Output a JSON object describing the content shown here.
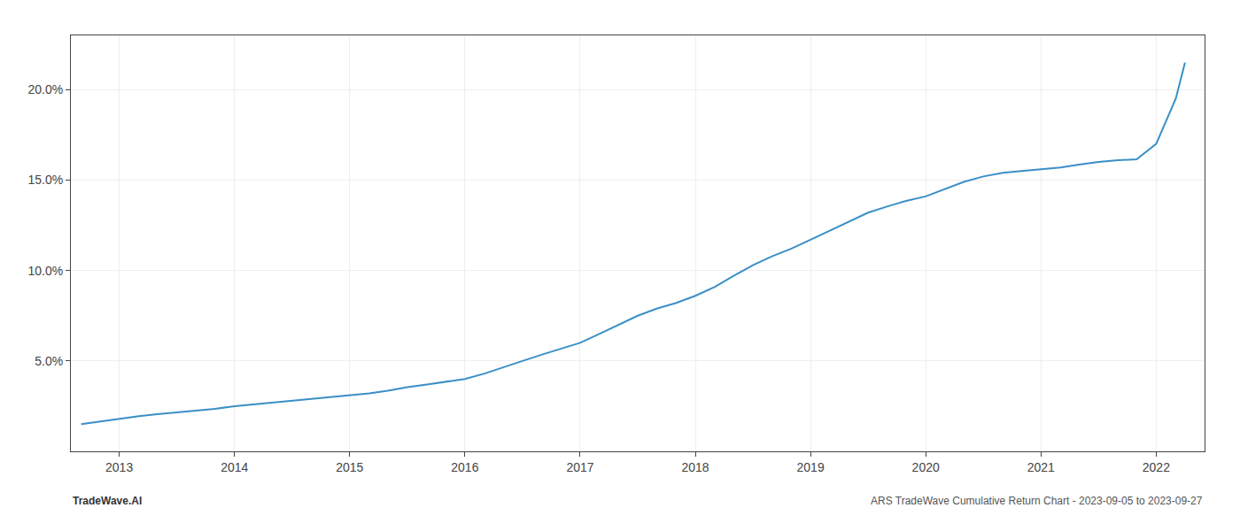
{
  "chart_data": {
    "type": "line",
    "x": [
      2012.67,
      2012.83,
      2013.0,
      2013.17,
      2013.33,
      2013.5,
      2013.67,
      2013.83,
      2014.0,
      2014.17,
      2014.33,
      2014.5,
      2014.67,
      2014.83,
      2015.0,
      2015.17,
      2015.33,
      2015.5,
      2015.67,
      2015.83,
      2016.0,
      2016.17,
      2016.33,
      2016.5,
      2016.67,
      2016.83,
      2017.0,
      2017.17,
      2017.33,
      2017.5,
      2017.67,
      2017.83,
      2018.0,
      2018.17,
      2018.33,
      2018.5,
      2018.67,
      2018.83,
      2019.0,
      2019.17,
      2019.33,
      2019.5,
      2019.67,
      2019.83,
      2020.0,
      2020.17,
      2020.33,
      2020.5,
      2020.67,
      2020.83,
      2021.0,
      2021.17,
      2021.33,
      2021.5,
      2021.67,
      2021.83,
      2022.0,
      2022.17,
      2022.25
    ],
    "values": [
      1.5,
      1.65,
      1.8,
      1.95,
      2.05,
      2.15,
      2.25,
      2.35,
      2.5,
      2.6,
      2.7,
      2.8,
      2.9,
      3.0,
      3.1,
      3.2,
      3.35,
      3.55,
      3.7,
      3.85,
      4.0,
      4.3,
      4.65,
      5.0,
      5.35,
      5.65,
      6.0,
      6.5,
      7.0,
      7.5,
      7.9,
      8.2,
      8.6,
      9.1,
      9.7,
      10.3,
      10.8,
      11.2,
      11.7,
      12.2,
      12.7,
      13.2,
      13.55,
      13.85,
      14.1,
      14.5,
      14.9,
      15.2,
      15.4,
      15.5,
      15.6,
      15.7,
      15.85,
      16.0,
      16.1,
      16.15,
      17.0,
      19.5,
      21.5
    ],
    "color": "#3a8fc7",
    "xlim": [
      2012.58,
      2022.42
    ],
    "xticks": [
      2013,
      2014,
      2015,
      2016,
      2017,
      2018,
      2019,
      2020,
      2021,
      2022
    ],
    "ylim": [
      0,
      23
    ],
    "yticks": [
      {
        "value": 5.0,
        "label": "5.0%"
      },
      {
        "value": 10.0,
        "label": "10.0%"
      },
      {
        "value": 15.0,
        "label": "15.0%"
      },
      {
        "value": 20.0,
        "label": "20.0%"
      }
    ],
    "grid": true,
    "annotations": [
      "TradeWave.AI",
      "ARS TradeWave Cumulative Return Chart - 2023-09-05 to 2023-09-27"
    ]
  }
}
